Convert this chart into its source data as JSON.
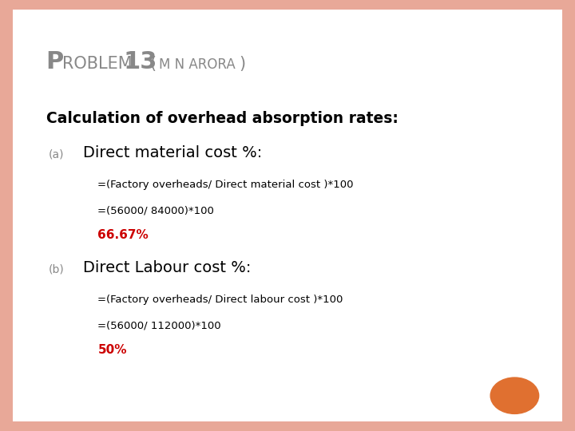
{
  "bg_color": "#ffffff",
  "border_color": "#e8a898",
  "title_P": "P",
  "title_roblem": "ROBLEM",
  "title_number": "13",
  "title_paren_open": "(",
  "title_mn_arora": "M N ARORA",
  "title_paren_close": ")",
  "subtitle": "Calculation of overhead absorption rates:",
  "section_a_label": "(a)",
  "section_a_heading": "Direct material cost %:",
  "section_a_line1": "=(Factory overheads/ Direct material cost )*100",
  "section_a_line2": "=(56000/ 84000)*100",
  "section_a_answer": "66.67%",
  "section_b_label": "(b)",
  "section_b_heading": "Direct Labour cost %:",
  "section_b_line1": "=(Factory overheads/ Direct labour cost )*100",
  "section_b_line2": "=(56000/ 112000)*100",
  "section_b_answer": "50%",
  "title_color": "#888888",
  "subtitle_color": "#000000",
  "label_color": "#888888",
  "heading_color": "#000000",
  "body_color": "#000000",
  "answer_color": "#cc0000",
  "orange_circle_color": "#e07030"
}
